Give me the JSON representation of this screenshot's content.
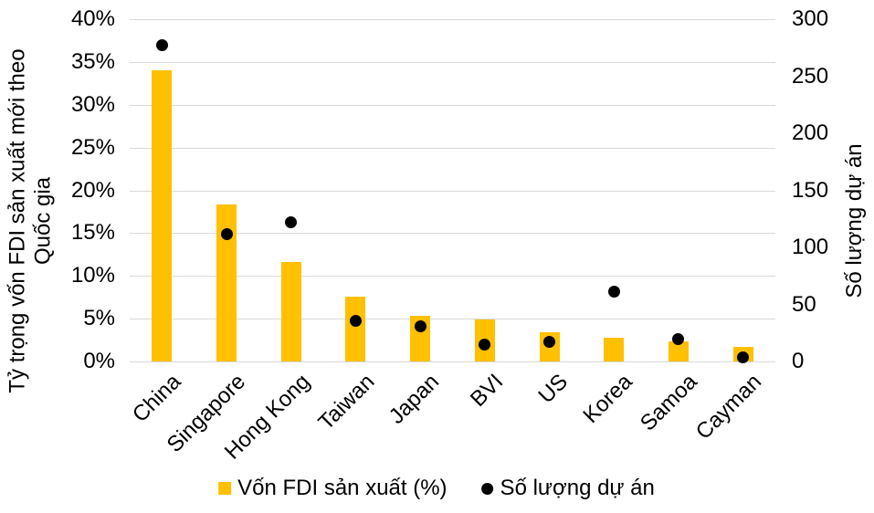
{
  "chart_data": {
    "type": "bar",
    "overlay_type": "scatter",
    "categories": [
      "China",
      "Singapore",
      "Hong Kong",
      "Taiwan",
      "Japan",
      "BVI",
      "US",
      "Korea",
      "Samoa",
      "Cayman"
    ],
    "series": [
      {
        "name": "Vốn FDI sản xuất (%)",
        "type": "bar",
        "axis": "left",
        "marker": "square",
        "color": "#FFC000",
        "values": [
          34.0,
          18.4,
          11.6,
          7.6,
          5.3,
          4.9,
          3.4,
          2.8,
          2.3,
          1.7
        ]
      },
      {
        "name": "Số lượng dự án",
        "type": "scatter",
        "axis": "right",
        "marker": "circle",
        "color": "#000000",
        "values": [
          277,
          112,
          122,
          36,
          31,
          15,
          17,
          61,
          20,
          4
        ]
      }
    ],
    "left_axis": {
      "title_lines": [
        "Tỷ trọng vốn FDI sản xuất mới theo",
        "Quốc gia"
      ],
      "min": 0,
      "max": 40,
      "tick_values": [
        0,
        5,
        10,
        15,
        20,
        25,
        30,
        35,
        40
      ],
      "tick_labels": [
        "0%",
        "5%",
        "10%",
        "15%",
        "20%",
        "25%",
        "30%",
        "35%",
        "40%"
      ]
    },
    "right_axis": {
      "title": "Số lượng dự án",
      "min": 0,
      "max": 300,
      "tick_values": [
        0,
        50,
        100,
        150,
        200,
        250,
        300
      ],
      "tick_labels": [
        "0",
        "50",
        "100",
        "150",
        "200",
        "250",
        "300"
      ]
    },
    "grid": "horizontal",
    "gridline_color": "#D9D9D9",
    "legend_position": "bottom",
    "background": "#FFFFFF"
  }
}
